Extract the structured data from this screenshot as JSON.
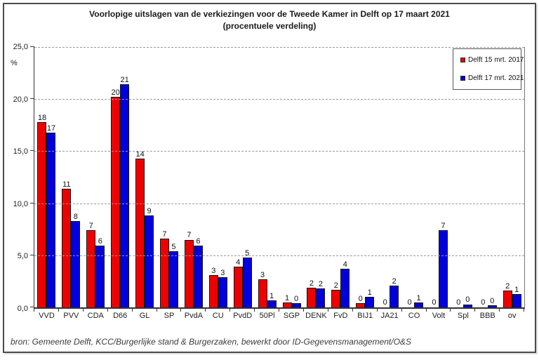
{
  "chart_data": {
    "type": "bar",
    "title": "Voorlopige uitslagen van de verkiezingen voor de Tweede Kamer in Delft op 17 maart 2021",
    "subtitle": "(procentuele verdeling)",
    "y_axis_unit_label": "%",
    "ylim": [
      0,
      25
    ],
    "ytick_labels": [
      "25,0",
      "20,0",
      "15,0",
      "10,0",
      "5,0",
      "0,0"
    ],
    "grid": "horizontal dashed lines every 5 percentage points",
    "legend_position": "top-right inside plot",
    "categories": [
      "VVD",
      "PVV",
      "CDA",
      "D66",
      "GL",
      "SP",
      "PvdA",
      "CU",
      "PvdD",
      "50Pl",
      "SGP",
      "DENK",
      "FvD",
      "BIJ1",
      "JA21",
      "CO",
      "Volt",
      "Spl",
      "BBB",
      "ov"
    ],
    "series": [
      {
        "name": "Delft 15 mrt. 2017",
        "color": "#ee0000",
        "values": [
          17.8,
          11.4,
          7.4,
          20.2,
          14.3,
          6.6,
          6.5,
          3.1,
          3.9,
          2.7,
          0.5,
          1.9,
          1.7,
          0.4,
          0,
          0,
          0,
          0,
          0,
          1.6
        ],
        "labels": [
          "18",
          "11",
          "7",
          "20",
          "14",
          "7",
          "7",
          "3",
          "4",
          "3",
          "1",
          "2",
          "2",
          "0",
          "0",
          "0",
          "0",
          "0",
          "0",
          "2"
        ]
      },
      {
        "name": "Delft 17 mrt. 2021",
        "color": "#0000dd",
        "values": [
          16.8,
          8.3,
          5.9,
          21.4,
          8.8,
          5.4,
          5.9,
          2.9,
          4.8,
          0.7,
          0.4,
          1.8,
          3.7,
          1.0,
          2.1,
          0.5,
          7.4,
          0.3,
          0.2,
          1.3
        ],
        "labels": [
          "17",
          "8",
          "6",
          "21",
          "9",
          "5",
          "6",
          "3",
          "5",
          "1",
          "0",
          "2",
          "4",
          "1",
          "2",
          "1",
          "7",
          "0",
          "0",
          "1"
        ]
      }
    ],
    "source": "bron: Gemeente Delft, KCC/Burgerlijke stand & Burgerzaken, bewerkt door ID-Gegevensmanagement/O&S"
  }
}
